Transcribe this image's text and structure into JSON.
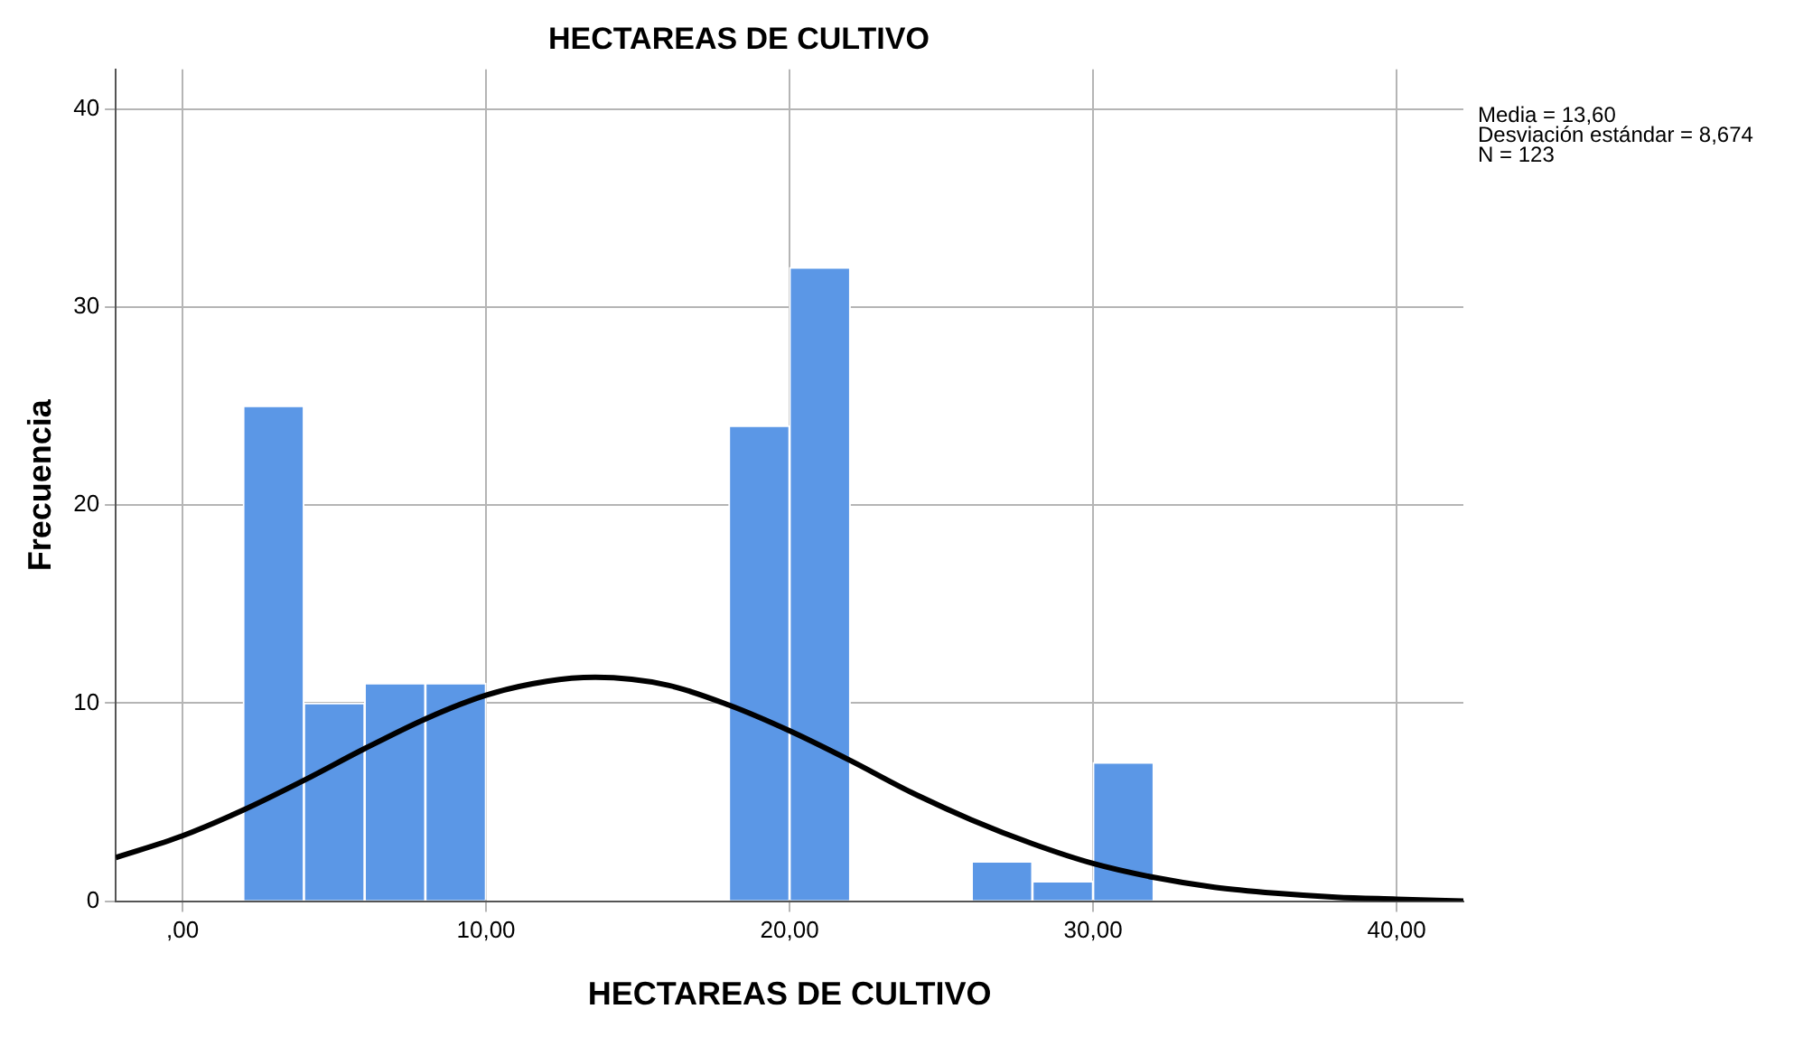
{
  "chart_data": {
    "type": "histogram",
    "title": "HECTAREAS DE CULTIVO",
    "xlabel": "HECTAREAS DE CULTIVO",
    "ylabel": "Frecuencia",
    "bins": [
      2,
      4,
      6,
      8,
      10,
      12,
      14,
      16,
      18,
      20,
      22,
      24,
      26,
      28,
      30,
      32
    ],
    "values": [
      25,
      10,
      11,
      11,
      0,
      0,
      0,
      0,
      24,
      32,
      0,
      0,
      2,
      1,
      7
    ],
    "color": "#5b97e6",
    "series": [
      {
        "type": "line",
        "color": "#000000",
        "x": [
          -2.2,
          0,
          2,
          4,
          6,
          8,
          10,
          12,
          13.6,
          16,
          18,
          20,
          22,
          24,
          26,
          28,
          30,
          32,
          34,
          36,
          38,
          40,
          42.2
        ],
        "values": [
          2.2,
          3.3,
          4.6,
          6.1,
          7.7,
          9.2,
          10.4,
          11.1,
          11.3,
          10.9,
          9.9,
          8.6,
          7.1,
          5.5,
          4.1,
          2.9,
          1.9,
          1.2,
          0.7,
          0.4,
          0.2,
          0.1,
          0
        ]
      }
    ],
    "xlim": [
      -2.2,
      42.2
    ],
    "xticks": [
      {
        "value": 0,
        "label": ",00"
      },
      {
        "value": 10,
        "label": "10,00"
      },
      {
        "value": 20,
        "label": "20,00"
      },
      {
        "value": 30,
        "label": "30,00"
      },
      {
        "value": 40,
        "label": "40,00"
      }
    ],
    "ylim": [
      0,
      42
    ],
    "yticks": [
      0,
      10,
      20,
      30,
      40
    ],
    "grid": true,
    "marker": "none",
    "line_style": "solid",
    "annotations": [
      "Media = 13,60",
      "Desviación estándar = 8,674",
      "N = 123"
    ]
  }
}
